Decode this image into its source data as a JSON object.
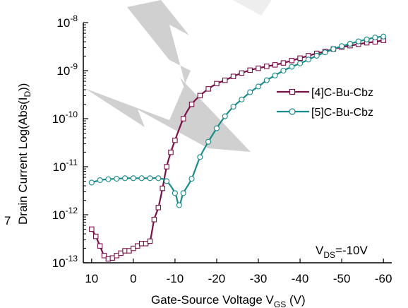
{
  "chart_data": {
    "type": "line",
    "xlabel_main": "Gate-Source Voltage V",
    "xlabel_sub": "GS",
    "xlabel_unit": " (V)",
    "ylabel_main": "Drain Current Log(Abs(I",
    "ylabel_sub": "D",
    "ylabel_end": "))",
    "corner_label": "7",
    "xlim": [
      12,
      -62
    ],
    "x_ticks": [
      10,
      0,
      -10,
      -20,
      -30,
      -40,
      -50,
      -60
    ],
    "x_tick_labels": [
      "10",
      "0",
      "-10",
      "-20",
      "-30",
      "-40",
      "-50",
      "-60"
    ],
    "y_scale": "log",
    "ylim_exp": [
      -13,
      -8
    ],
    "y_ticks_exp": [
      -8,
      -9,
      -10,
      -11,
      -12,
      -13
    ],
    "y_tick_base": "10",
    "y_tick_exps": [
      "-8",
      "-9",
      "-10",
      "-11",
      "-12",
      "-13"
    ],
    "annotation": {
      "prefix": "V",
      "sub": "DS",
      "suffix": "=-10V"
    },
    "legend_position": "right",
    "series": [
      {
        "name": "[4]C-Bu-Cbz",
        "color": "#7a1048",
        "marker": "square",
        "x": [
          10,
          9,
          8,
          7,
          6,
          5,
          4,
          3,
          2,
          1,
          0,
          -1,
          -2,
          -3,
          -4,
          -5,
          -6,
          -7,
          -8,
          -9,
          -10,
          -12,
          -14,
          -16,
          -18,
          -20,
          -22,
          -24,
          -26,
          -28,
          -30,
          -32,
          -34,
          -36,
          -38,
          -40,
          -42,
          -44,
          -46,
          -48,
          -50,
          -52,
          -54,
          -56,
          -58,
          -60
        ],
        "y_exp": [
          -12.3,
          -12.45,
          -12.65,
          -12.85,
          -12.92,
          -12.9,
          -12.85,
          -12.8,
          -12.75,
          -12.75,
          -12.7,
          -12.65,
          -12.6,
          -12.6,
          -12.55,
          -12.1,
          -11.85,
          -11.45,
          -11.0,
          -10.7,
          -10.45,
          -10.0,
          -9.7,
          -9.52,
          -9.38,
          -9.27,
          -9.2,
          -9.12,
          -9.05,
          -8.99,
          -8.95,
          -8.91,
          -8.88,
          -8.84,
          -8.79,
          -8.74,
          -8.69,
          -8.64,
          -8.6,
          -8.55,
          -8.51,
          -8.48,
          -8.45,
          -8.42,
          -8.4,
          -8.37
        ]
      },
      {
        "name": "[5]C-Bu-Cbz",
        "color": "#1a8a8a",
        "marker": "circle",
        "x": [
          10,
          8,
          6,
          4,
          2,
          0,
          -2,
          -4,
          -6,
          -8,
          -10,
          -11,
          -12,
          -14,
          -16,
          -18,
          -20,
          -22,
          -24,
          -26,
          -28,
          -30,
          -32,
          -34,
          -36,
          -38,
          -40,
          -42,
          -44,
          -46,
          -48,
          -50,
          -52,
          -54,
          -56,
          -58,
          -60
        ],
        "y_exp": [
          -11.33,
          -11.28,
          -11.26,
          -11.25,
          -11.24,
          -11.24,
          -11.24,
          -11.24,
          -11.24,
          -11.3,
          -11.55,
          -11.8,
          -11.55,
          -11.25,
          -10.8,
          -10.48,
          -10.2,
          -9.95,
          -9.75,
          -9.6,
          -9.45,
          -9.33,
          -9.2,
          -9.1,
          -9.0,
          -8.92,
          -8.85,
          -8.77,
          -8.69,
          -8.62,
          -8.55,
          -8.49,
          -8.44,
          -8.39,
          -8.35,
          -8.31,
          -8.29
        ]
      }
    ]
  }
}
